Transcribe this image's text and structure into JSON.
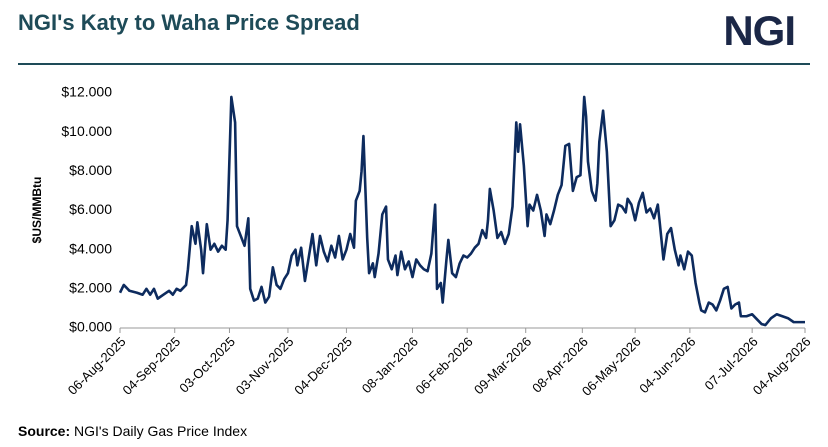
{
  "logo": "NGI",
  "chart_data": {
    "type": "line",
    "title": "NGI's Katy to Waha Price Spread",
    "ylabel": "$US/MMBtu",
    "source_label": "Source:",
    "source": "NGI's Daily Gas Price Index",
    "color": "#0d2b5e",
    "x": [
      "2025-08-06",
      "2025-08-08",
      "2025-08-11",
      "2025-08-15",
      "2025-08-18",
      "2025-08-20",
      "2025-08-22",
      "2025-08-24",
      "2025-08-26",
      "2025-08-29",
      "2025-09-01",
      "2025-09-03",
      "2025-09-05",
      "2025-09-07",
      "2025-09-10",
      "2025-09-11",
      "2025-09-13",
      "2025-09-15",
      "2025-09-16",
      "2025-09-18",
      "2025-09-19",
      "2025-09-21",
      "2025-09-23",
      "2025-09-25",
      "2025-09-27",
      "2025-09-29",
      "2025-10-01",
      "2025-10-02",
      "2025-10-04",
      "2025-10-06",
      "2025-10-07",
      "2025-10-09",
      "2025-10-11",
      "2025-10-13",
      "2025-10-14",
      "2025-10-16",
      "2025-10-18",
      "2025-10-20",
      "2025-10-22",
      "2025-10-24",
      "2025-10-26",
      "2025-10-28",
      "2025-10-30",
      "2025-11-01",
      "2025-11-03",
      "2025-11-05",
      "2025-11-07",
      "2025-11-08",
      "2025-11-10",
      "2025-11-12",
      "2025-11-14",
      "2025-11-16",
      "2025-11-18",
      "2025-11-20",
      "2025-11-22",
      "2025-11-24",
      "2025-11-26",
      "2025-11-28",
      "2025-11-30",
      "2025-12-02",
      "2025-12-04",
      "2025-12-06",
      "2025-12-08",
      "2025-12-09",
      "2025-12-11",
      "2025-12-12",
      "2025-12-13",
      "2025-12-15",
      "2025-12-16",
      "2025-12-18",
      "2025-12-19",
      "2025-12-21",
      "2025-12-23",
      "2025-12-25",
      "2025-12-26",
      "2025-12-28",
      "2025-12-30",
      "2025-12-31",
      "2026-01-02",
      "2026-01-04",
      "2026-01-06",
      "2026-01-08",
      "2026-01-10",
      "2026-01-12",
      "2026-01-14",
      "2026-01-16",
      "2026-01-18",
      "2026-01-20",
      "2026-01-21",
      "2026-01-23",
      "2026-01-24",
      "2026-01-26",
      "2026-01-27",
      "2026-01-29",
      "2026-01-31",
      "2026-02-02",
      "2026-02-04",
      "2026-02-06",
      "2026-02-08",
      "2026-02-10",
      "2026-02-12",
      "2026-02-14",
      "2026-02-16",
      "2026-02-17",
      "2026-02-18",
      "2026-02-20",
      "2026-02-22",
      "2026-02-24",
      "2026-02-26",
      "2026-02-28",
      "2026-03-02",
      "2026-03-04",
      "2026-03-05",
      "2026-03-06",
      "2026-03-08",
      "2026-03-10",
      "2026-03-11",
      "2026-03-13",
      "2026-03-15",
      "2026-03-17",
      "2026-03-19",
      "2026-03-20",
      "2026-03-22",
      "2026-03-24",
      "2026-03-26",
      "2026-03-28",
      "2026-03-30",
      "2026-04-01",
      "2026-04-03",
      "2026-04-05",
      "2026-04-07",
      "2026-04-09",
      "2026-04-10",
      "2026-04-11",
      "2026-04-13",
      "2026-04-15",
      "2026-04-16",
      "2026-04-17",
      "2026-04-19",
      "2026-04-21",
      "2026-04-23",
      "2026-04-25",
      "2026-04-27",
      "2026-04-29",
      "2026-05-01",
      "2026-05-02",
      "2026-05-04",
      "2026-05-06",
      "2026-05-08",
      "2026-05-10",
      "2026-05-12",
      "2026-05-14",
      "2026-05-16",
      "2026-05-18",
      "2026-05-19",
      "2026-05-21",
      "2026-05-23",
      "2026-05-25",
      "2026-05-27",
      "2026-05-29",
      "2026-05-30",
      "2026-06-01",
      "2026-06-03",
      "2026-06-05",
      "2026-06-07",
      "2026-06-09",
      "2026-06-10",
      "2026-06-12",
      "2026-06-14",
      "2026-06-16",
      "2026-06-18",
      "2026-06-20",
      "2026-06-22",
      "2026-06-24",
      "2026-06-26",
      "2026-06-28",
      "2026-06-30",
      "2026-07-01",
      "2026-07-04",
      "2026-07-07",
      "2026-07-10",
      "2026-07-12",
      "2026-07-14",
      "2026-07-17",
      "2026-07-20",
      "2026-07-23",
      "2026-07-26",
      "2026-07-29",
      "2026-08-01",
      "2026-08-04"
    ],
    "values": [
      1.8,
      2.2,
      1.9,
      1.8,
      1.7,
      2.0,
      1.7,
      2.0,
      1.5,
      1.7,
      1.9,
      1.7,
      2.0,
      1.9,
      2.2,
      3.0,
      5.2,
      4.3,
      5.4,
      4.0,
      2.8,
      5.3,
      4.0,
      4.3,
      3.9,
      4.2,
      4.0,
      5.5,
      11.8,
      10.5,
      5.2,
      4.7,
      4.2,
      5.6,
      2.0,
      1.4,
      1.5,
      2.1,
      1.3,
      1.6,
      3.1,
      2.2,
      2.0,
      2.5,
      2.8,
      3.7,
      4.0,
      3.2,
      4.1,
      2.4,
      3.6,
      4.8,
      3.2,
      4.7,
      3.9,
      3.4,
      4.2,
      3.6,
      4.7,
      3.5,
      4.0,
      4.8,
      4.1,
      6.5,
      7.0,
      8.0,
      9.8,
      4.6,
      2.8,
      3.3,
      2.6,
      3.8,
      5.8,
      6.2,
      3.5,
      3.0,
      3.7,
      2.7,
      3.9,
      3.0,
      3.4,
      2.6,
      3.5,
      3.2,
      3.0,
      2.9,
      3.8,
      6.3,
      2.0,
      2.3,
      1.3,
      3.5,
      4.5,
      2.8,
      2.6,
      3.3,
      3.7,
      3.6,
      3.8,
      4.1,
      4.3,
      5.0,
      4.6,
      5.5,
      7.1,
      6.0,
      4.6,
      4.9,
      4.3,
      4.8,
      6.2,
      10.5,
      9.0,
      10.4,
      8.3,
      5.2,
      6.3,
      6.0,
      6.8,
      6.0,
      4.7,
      5.8,
      5.3,
      6.0,
      6.8,
      7.3,
      9.3,
      9.4,
      7.0,
      7.7,
      7.8,
      11.8,
      10.8,
      8.5,
      7.0,
      6.5,
      7.4,
      9.5,
      11.1,
      9.0,
      5.2,
      5.5,
      6.3,
      6.2,
      5.9,
      6.6,
      6.3,
      5.5,
      6.4,
      6.9,
      5.9,
      6.1,
      5.6,
      6.3,
      5.4,
      3.5,
      4.8,
      5.1,
      4.0,
      3.2,
      3.7,
      3.0,
      3.9,
      3.7,
      2.3,
      1.3,
      0.9,
      0.8,
      1.3,
      1.2,
      0.9,
      1.4,
      2.0,
      2.1,
      1.0,
      1.2,
      1.3,
      0.6,
      0.6,
      0.7,
      0.4,
      0.2,
      0.15,
      0.5,
      0.7,
      0.6,
      0.5,
      0.3,
      0.3,
      0.3
    ],
    "xlim": [
      "2025-08-06",
      "2026-08-04"
    ],
    "xticks": [
      {
        "value": "2025-08-06",
        "label": "06-Aug-2025"
      },
      {
        "value": "2025-09-04",
        "label": "04-Sep-2025"
      },
      {
        "value": "2025-10-03",
        "label": "03-Oct-2025"
      },
      {
        "value": "2025-11-03",
        "label": "03-Nov-2025"
      },
      {
        "value": "2025-12-04",
        "label": "04-Dec-2025"
      },
      {
        "value": "2026-01-08",
        "label": "08-Jan-2026"
      },
      {
        "value": "2026-02-06",
        "label": "06-Feb-2026"
      },
      {
        "value": "2026-03-09",
        "label": "09-Mar-2026"
      },
      {
        "value": "2026-04-08",
        "label": "08-Apr-2026"
      },
      {
        "value": "2026-05-06",
        "label": "06-May-2026"
      },
      {
        "value": "2026-06-04",
        "label": "04-Jun-2026"
      },
      {
        "value": "2026-07-07",
        "label": "07-Jul-2026"
      },
      {
        "value": "2026-08-04",
        "label": "04-Aug-2026"
      }
    ],
    "ylim": [
      0,
      12
    ],
    "yticks": [
      {
        "value": 0,
        "label": "$0.000"
      },
      {
        "value": 2,
        "label": "$2.000"
      },
      {
        "value": 4,
        "label": "$4.000"
      },
      {
        "value": 6,
        "label": "$6.000"
      },
      {
        "value": 8,
        "label": "$8.000"
      },
      {
        "value": 10,
        "label": "$10.000"
      },
      {
        "value": 12,
        "label": "$12.000"
      }
    ],
    "grid": false
  }
}
